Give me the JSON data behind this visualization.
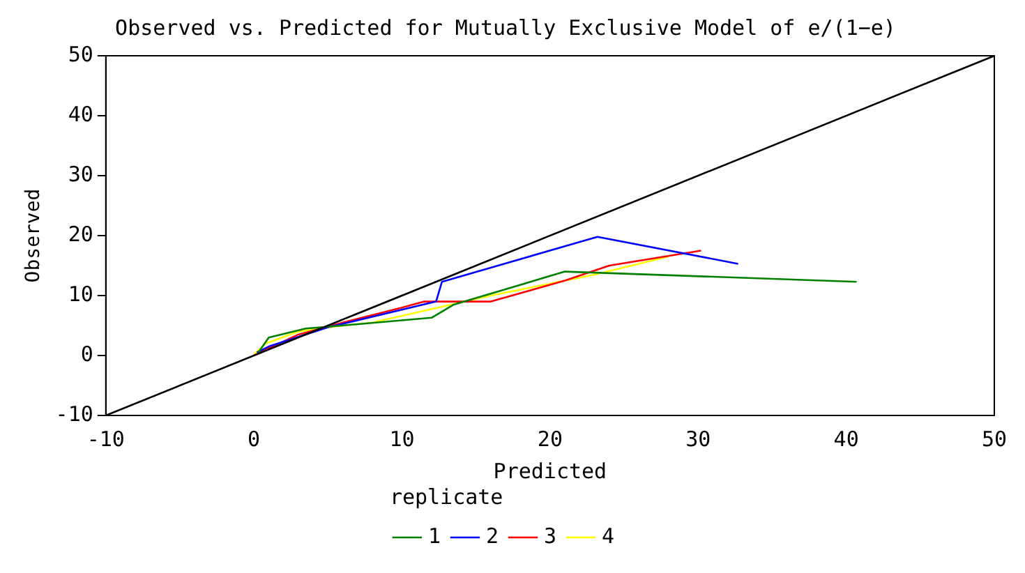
{
  "chart_data": {
    "type": "line",
    "title": "Observed vs. Predicted for Mutually Exclusive Model of e/(1−e)",
    "xlabel": "Predicted",
    "ylabel": "Observed",
    "legend_title": "replicate",
    "legend": "bottom",
    "grid": false,
    "marker": "none",
    "line_style": "solid",
    "xlim": [
      -10,
      50
    ],
    "xticks": [
      -10,
      0,
      10,
      20,
      30,
      40,
      50
    ],
    "ylim": [
      -10,
      50
    ],
    "yticks": [
      -10,
      0,
      10,
      20,
      30,
      40,
      50
    ],
    "series": [
      {
        "color": "#000000",
        "x": [
          -10,
          50
        ],
        "values": [
          -10,
          50
        ]
      },
      {
        "name": "1",
        "color": "#008000",
        "x": [
          0.3,
          1,
          3.5,
          5,
          12,
          13.5,
          21,
          40.7
        ],
        "values": [
          0.5,
          3,
          4.5,
          4.8,
          6.3,
          8.5,
          14,
          12.3
        ]
      },
      {
        "name": "2",
        "color": "#0000ff",
        "x": [
          0.2,
          1,
          5,
          12.3,
          12.7,
          23.2,
          32.7
        ],
        "values": [
          0.5,
          1.5,
          4.7,
          9,
          12.3,
          19.8,
          15.3
        ]
      },
      {
        "name": "3",
        "color": "#ff0000",
        "x": [
          0,
          1,
          3,
          6,
          10,
          11.5,
          16,
          21,
          24,
          30.2
        ],
        "values": [
          0,
          1.2,
          3.5,
          5.5,
          8,
          9,
          9,
          12.5,
          15,
          17.5
        ]
      },
      {
        "name": "4",
        "color": "#ffff00",
        "x": [
          0,
          0.8,
          3,
          5,
          8,
          16,
          23,
          28
        ],
        "values": [
          0.2,
          2,
          4,
          4.7,
          5.5,
          10,
          13.5,
          16.5
        ]
      }
    ]
  }
}
